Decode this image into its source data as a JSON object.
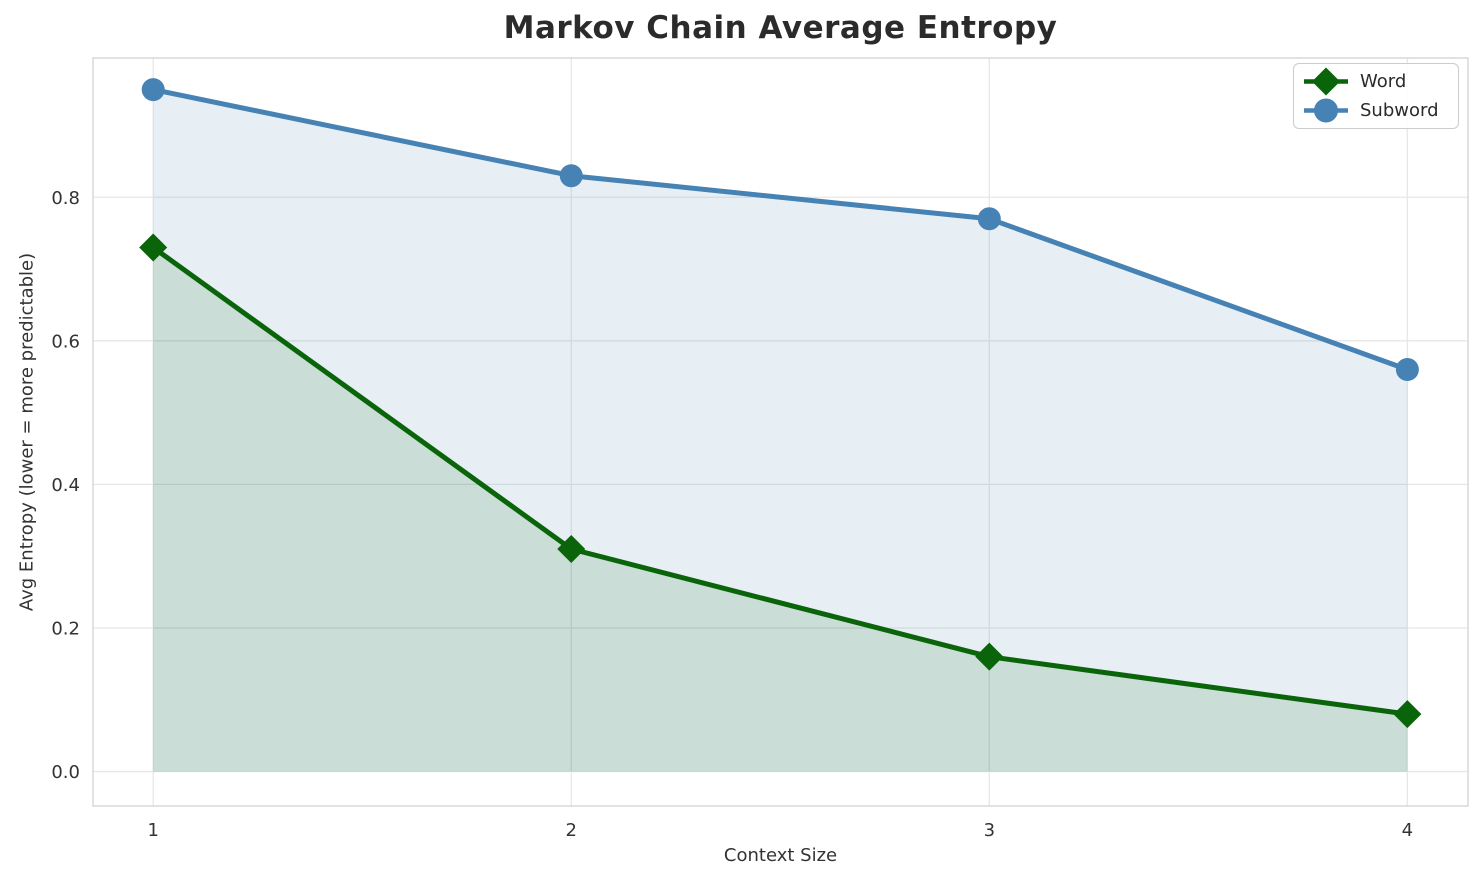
{
  "chart_data": {
    "type": "line",
    "title": "Markov Chain Average Entropy",
    "xlabel": "Context Size",
    "ylabel": "Avg Entropy (lower = more predictable)",
    "x": [
      1,
      2,
      3,
      4
    ],
    "series": [
      {
        "name": "Word",
        "values": [
          0.73,
          0.31,
          0.16,
          0.08
        ],
        "color": "#0a640a",
        "marker": "diamond"
      },
      {
        "name": "Subword",
        "values": [
          0.95,
          0.83,
          0.77,
          0.56
        ],
        "color": "#4682b4",
        "marker": "circle"
      }
    ],
    "fill_to_zero": true,
    "fill_opacity": 0.13,
    "xticks": [
      "1",
      "2",
      "3",
      "4"
    ],
    "xtick_values": [
      1,
      2,
      3,
      4
    ],
    "yticks": [
      "0.0",
      "0.2",
      "0.4",
      "0.6",
      "0.8"
    ],
    "ytick_values": [
      0,
      0.2,
      0.4,
      0.6,
      0.8
    ],
    "xlim": [
      0.856,
      4.145
    ],
    "ylim": [
      -0.048,
      0.994
    ],
    "grid": true,
    "grid_color": "#e7e7e9",
    "spine_color": "#d6d6da",
    "tick_label_color": "#333333",
    "legend_position": "top-right"
  }
}
